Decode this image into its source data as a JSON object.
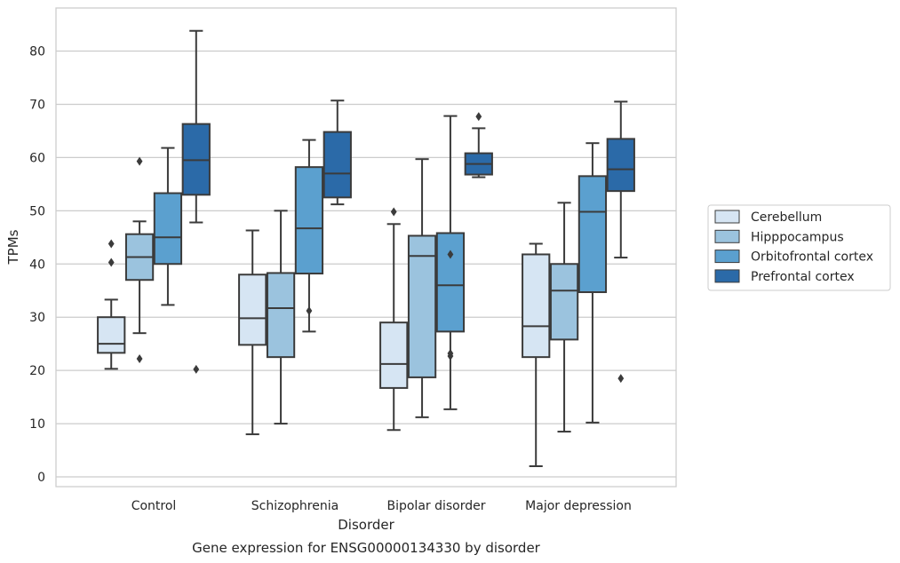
{
  "chart_data": {
    "type": "boxplot",
    "title": "Gene expression for ENSG00000134330 by disorder",
    "xlabel": "Disorder",
    "ylabel": "TPMs",
    "ylim": [
      -2,
      88
    ],
    "yticks": [
      0,
      10,
      20,
      30,
      40,
      50,
      60,
      70,
      80
    ],
    "grid": "horizontal",
    "legend_position": "right",
    "categories": [
      "Control",
      "Schizophrenia",
      "Bipolar disorder",
      "Major depression"
    ],
    "series": [
      {
        "name": "Cerebellum",
        "color": "#d6e5f3",
        "boxes": [
          {
            "whisker_low": 20.3,
            "q1": 23.3,
            "median": 25.0,
            "q3": 30.0,
            "whisker_high": 33.3,
            "outliers": [
              40.3,
              43.8
            ]
          },
          {
            "whisker_low": 8.0,
            "q1": 24.8,
            "median": 29.8,
            "q3": 38.0,
            "whisker_high": 46.3,
            "outliers": []
          },
          {
            "whisker_low": 8.8,
            "q1": 16.7,
            "median": 21.2,
            "q3": 29.0,
            "whisker_high": 47.5,
            "outliers": [
              49.8
            ]
          },
          {
            "whisker_low": 2.0,
            "q1": 22.5,
            "median": 28.3,
            "q3": 41.8,
            "whisker_high": 43.8,
            "outliers": []
          }
        ]
      },
      {
        "name": "Hipppocampus",
        "color": "#9bc3de",
        "boxes": [
          {
            "whisker_low": 27.0,
            "q1": 37.0,
            "median": 41.3,
            "q3": 45.6,
            "whisker_high": 48.0,
            "outliers": [
              22.2,
              59.3
            ]
          },
          {
            "whisker_low": 10.0,
            "q1": 22.5,
            "median": 31.7,
            "q3": 38.3,
            "whisker_high": 50.0,
            "outliers": []
          },
          {
            "whisker_low": 11.2,
            "q1": 18.7,
            "median": 41.5,
            "q3": 45.3,
            "whisker_high": 59.7,
            "outliers": []
          },
          {
            "whisker_low": 8.5,
            "q1": 25.8,
            "median": 35.0,
            "q3": 40.0,
            "whisker_high": 51.5,
            "outliers": []
          }
        ]
      },
      {
        "name": "Orbitofrontal cortex",
        "color": "#5ba0cf",
        "boxes": [
          {
            "whisker_low": 32.3,
            "q1": 40.0,
            "median": 45.0,
            "q3": 53.3,
            "whisker_high": 61.8,
            "outliers": []
          },
          {
            "whisker_low": 27.3,
            "q1": 38.2,
            "median": 46.7,
            "q3": 58.2,
            "whisker_high": 63.3,
            "outliers": [
              31.2
            ]
          },
          {
            "whisker_low": 12.7,
            "q1": 27.3,
            "median": 36.0,
            "q3": 45.8,
            "whisker_high": 67.8,
            "outliers": [
              22.7,
              23.2,
              41.8
            ]
          },
          {
            "whisker_low": 10.2,
            "q1": 34.7,
            "median": 49.8,
            "q3": 56.5,
            "whisker_high": 62.7,
            "outliers": []
          }
        ]
      },
      {
        "name": "Prefrontal cortex",
        "color": "#2b6aa8",
        "boxes": [
          {
            "whisker_low": 47.8,
            "q1": 53.0,
            "median": 59.5,
            "q3": 66.3,
            "whisker_high": 83.8,
            "outliers": [
              20.2
            ]
          },
          {
            "whisker_low": 51.2,
            "q1": 52.5,
            "median": 57.0,
            "q3": 64.8,
            "whisker_high": 70.7,
            "outliers": []
          },
          {
            "whisker_low": 56.3,
            "q1": 56.8,
            "median": 58.8,
            "q3": 60.8,
            "whisker_high": 65.5,
            "outliers": [
              67.7
            ]
          },
          {
            "whisker_low": 41.2,
            "q1": 53.7,
            "median": 57.8,
            "q3": 63.5,
            "whisker_high": 70.5,
            "outliers": [
              18.5
            ]
          }
        ]
      }
    ]
  }
}
